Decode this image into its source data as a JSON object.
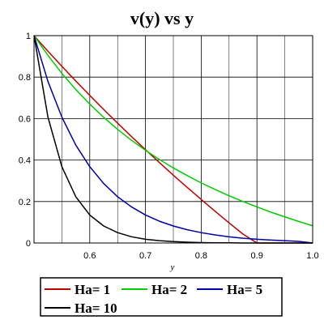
{
  "chart_data": {
    "type": "line",
    "title": "v(y) vs y",
    "xlabel": "y",
    "ylabel": "",
    "xlim": [
      0.5,
      1.0
    ],
    "ylim": [
      0,
      1
    ],
    "grid": true,
    "legend_placement": "bottom",
    "x_ticks": [
      "0.6",
      "0.7",
      "0.8",
      "0.9",
      "1.0"
    ],
    "y_ticks": [
      "0",
      "0.2",
      "0.4",
      "0.6",
      "0.8",
      "1"
    ],
    "x": [
      0.5,
      0.525,
      0.55,
      0.575,
      0.6,
      0.625,
      0.65,
      0.675,
      0.7,
      0.725,
      0.75,
      0.775,
      0.8,
      0.825,
      0.85,
      0.875,
      0.9,
      0.925,
      0.95,
      0.975,
      1.0
    ],
    "series": [
      {
        "name": "Ha= 1",
        "color": "#c00000",
        "values": [
          1.0,
          0.925,
          0.852,
          0.781,
          0.712,
          0.644,
          0.578,
          0.513,
          0.45,
          0.388,
          0.327,
          0.268,
          0.21,
          0.153,
          0.097,
          0.043,
          0.0,
          0.0,
          0.0,
          0.0,
          0.0
        ]
      },
      {
        "name": "Ha= 2",
        "color": "#00cc00",
        "values": [
          1.0,
          0.905,
          0.818,
          0.74,
          0.67,
          0.606,
          0.548,
          0.495,
          0.447,
          0.403,
          0.362,
          0.325,
          0.29,
          0.258,
          0.228,
          0.2,
          0.174,
          0.149,
          0.126,
          0.104,
          0.083
        ]
      },
      {
        "name": "Ha= 5",
        "color": "#0000aa",
        "values": [
          1.0,
          0.779,
          0.607,
          0.472,
          0.368,
          0.287,
          0.223,
          0.174,
          0.135,
          0.105,
          0.082,
          0.064,
          0.05,
          0.039,
          0.03,
          0.023,
          0.018,
          0.014,
          0.011,
          0.008,
          0.0
        ]
      },
      {
        "name": "Ha= 10",
        "color": "#000000",
        "values": [
          1.0,
          0.607,
          0.368,
          0.223,
          0.135,
          0.082,
          0.05,
          0.03,
          0.018,
          0.011,
          0.007,
          0.004,
          0.002,
          0.001,
          0.001,
          0.0,
          0.0,
          0.0,
          0.0,
          0.0,
          0.0
        ]
      }
    ]
  }
}
